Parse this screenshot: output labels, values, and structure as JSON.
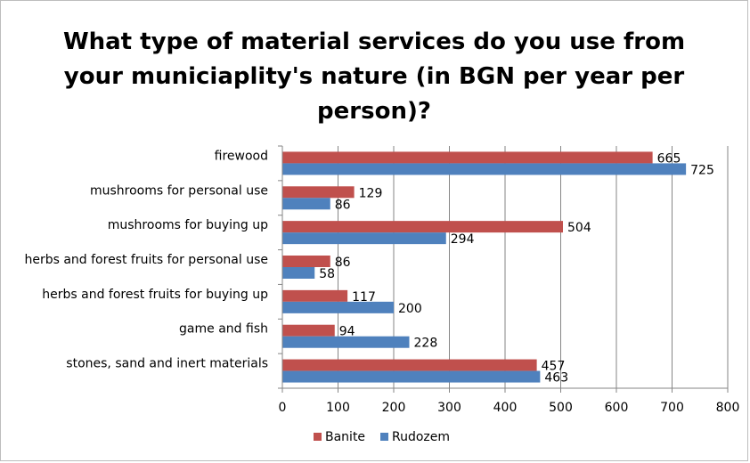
{
  "chart_data": {
    "type": "bar",
    "orientation": "horizontal",
    "title": "What type of material services do you use from your municiaplity's nature (in BGN per year per person)?",
    "categories": [
      "firewood",
      "mushrooms for personal use",
      "mushrooms for buying up",
      "herbs and forest fruits for personal use",
      "herbs and forest fruits for buying up",
      "game and fish",
      "stones, sand and inert materials"
    ],
    "series": [
      {
        "name": "Banite",
        "color": "#c0504d",
        "values": [
          665,
          129,
          504,
          86,
          117,
          94,
          457
        ]
      },
      {
        "name": "Rudozem",
        "color": "#4f81bd",
        "values": [
          725,
          86,
          294,
          58,
          200,
          228,
          463
        ]
      }
    ],
    "xlim": [
      0,
      800
    ],
    "xticks": [
      0,
      100,
      200,
      300,
      400,
      500,
      600,
      700,
      800
    ],
    "grid": true,
    "legend": "bottom",
    "data_labels": true
  }
}
